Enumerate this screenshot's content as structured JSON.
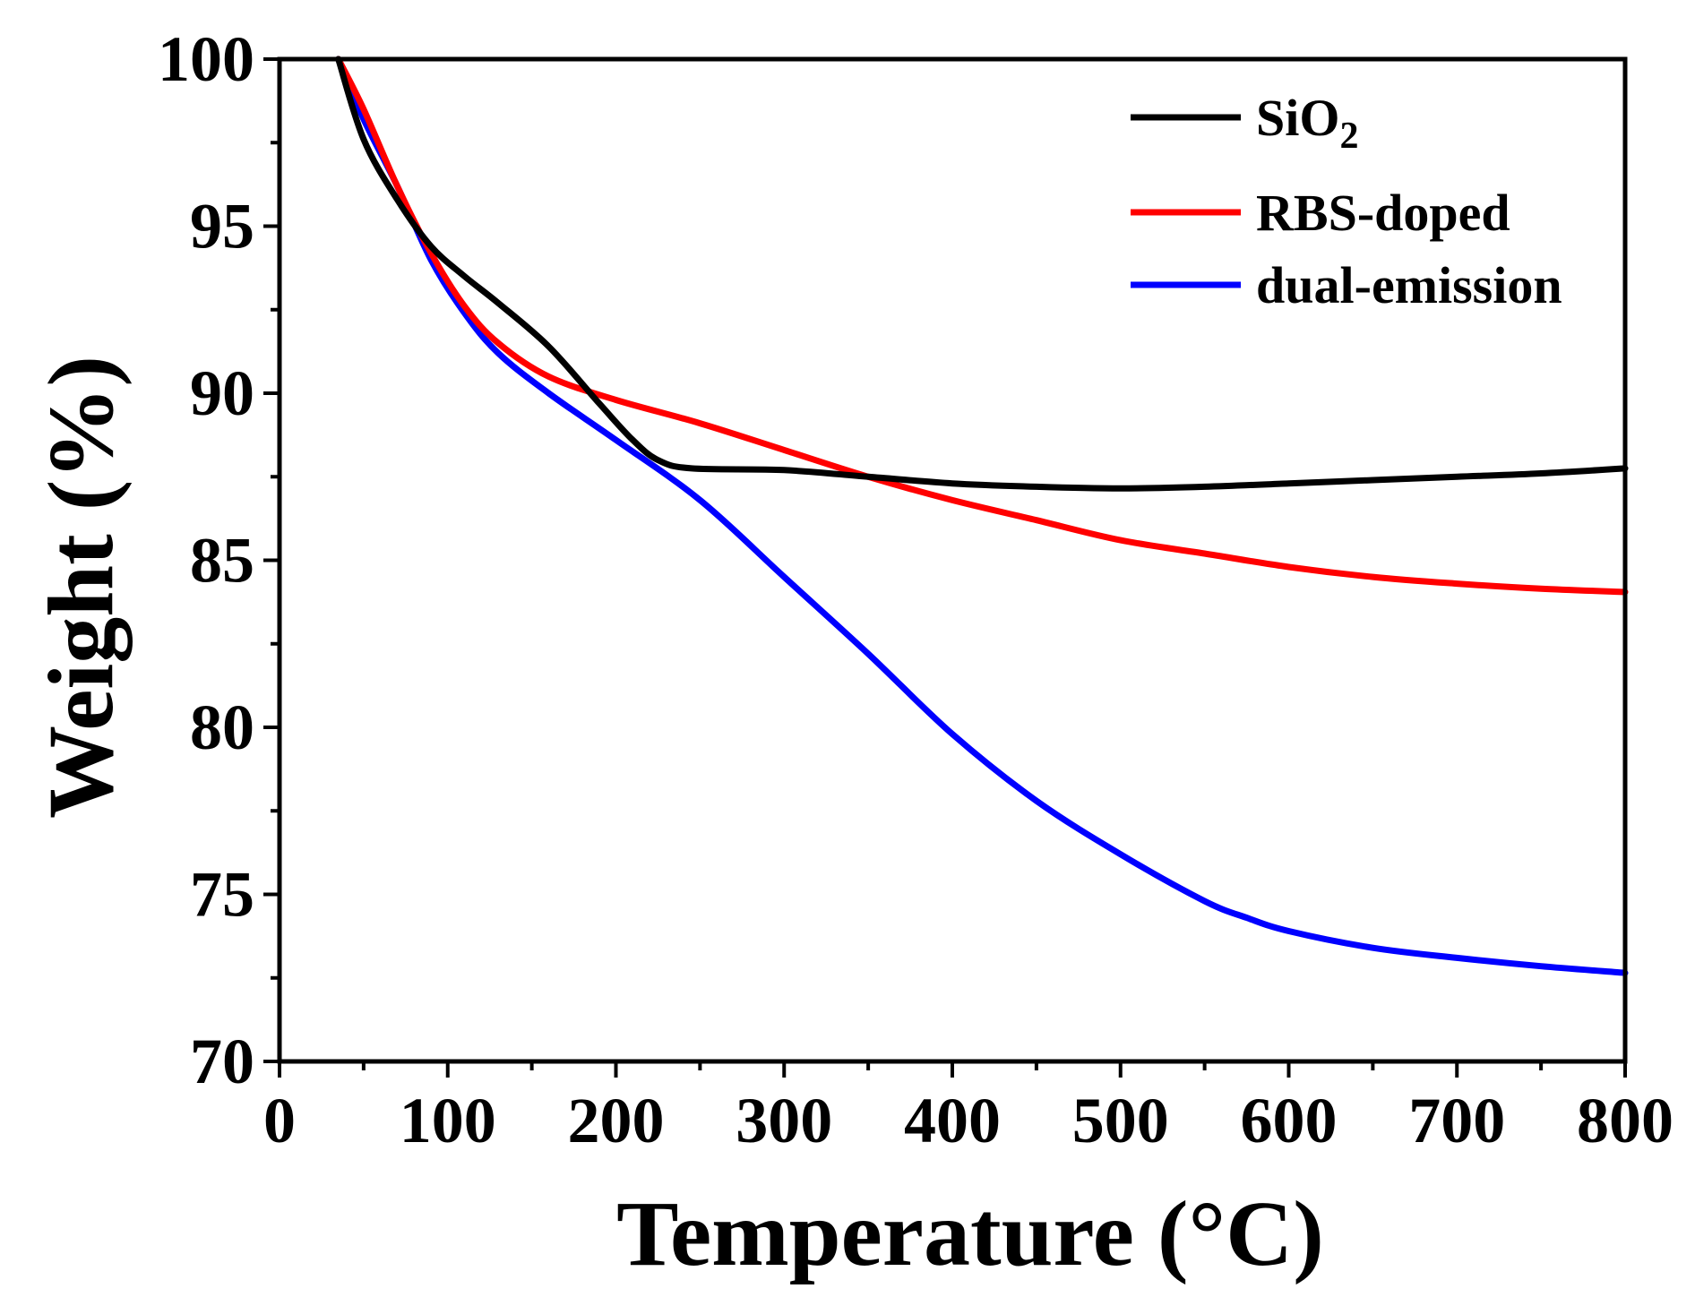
{
  "chart_data": {
    "type": "line",
    "title": "",
    "xlabel": "Temperature (°C)",
    "ylabel": "Weight (%)",
    "xlim": [
      0,
      800
    ],
    "ylim": [
      70,
      100
    ],
    "xticks": [
      0,
      100,
      200,
      300,
      400,
      500,
      600,
      700,
      800
    ],
    "yticks": [
      70,
      75,
      80,
      85,
      90,
      95,
      100
    ],
    "grid": false,
    "legend_position": "top-right",
    "series": [
      {
        "name": "SiO2",
        "label_main": "SiO",
        "label_sub": "2",
        "color": "#000000",
        "x": [
          35,
          50,
          70,
          90,
          110,
          130,
          160,
          190,
          210,
          225,
          245,
          300,
          350,
          400,
          450,
          500,
          550,
          600,
          650,
          700,
          750,
          800
        ],
        "y": [
          100,
          97.6,
          95.8,
          94.4,
          93.5,
          92.7,
          91.4,
          89.7,
          88.6,
          88.0,
          87.75,
          87.7,
          87.5,
          87.3,
          87.2,
          87.15,
          87.2,
          87.3,
          87.4,
          87.5,
          87.6,
          87.75
        ]
      },
      {
        "name": "RBS-doped",
        "label_main": "RBS-doped",
        "label_sub": "",
        "color": "#ff0000",
        "x": [
          35,
          50,
          70,
          90,
          110,
          130,
          160,
          200,
          250,
          300,
          350,
          400,
          450,
          500,
          550,
          600,
          650,
          700,
          750,
          800
        ],
        "y": [
          100,
          98.5,
          96.2,
          94.2,
          92.6,
          91.5,
          90.5,
          89.8,
          89.1,
          88.3,
          87.5,
          86.8,
          86.2,
          85.6,
          85.2,
          84.8,
          84.5,
          84.3,
          84.15,
          84.05
        ]
      },
      {
        "name": "dual-emission",
        "label_main": "dual-emission",
        "label_sub": "",
        "color": "#0000ff",
        "x": [
          35,
          50,
          70,
          90,
          110,
          130,
          160,
          200,
          250,
          300,
          350,
          400,
          450,
          500,
          550,
          575,
          600,
          650,
          700,
          750,
          800
        ],
        "y": [
          100,
          98.2,
          96.2,
          94.0,
          92.4,
          91.2,
          90.0,
          88.6,
          86.8,
          84.5,
          82.2,
          79.8,
          77.8,
          76.2,
          74.8,
          74.3,
          73.9,
          73.4,
          73.1,
          72.85,
          72.65
        ]
      }
    ]
  }
}
